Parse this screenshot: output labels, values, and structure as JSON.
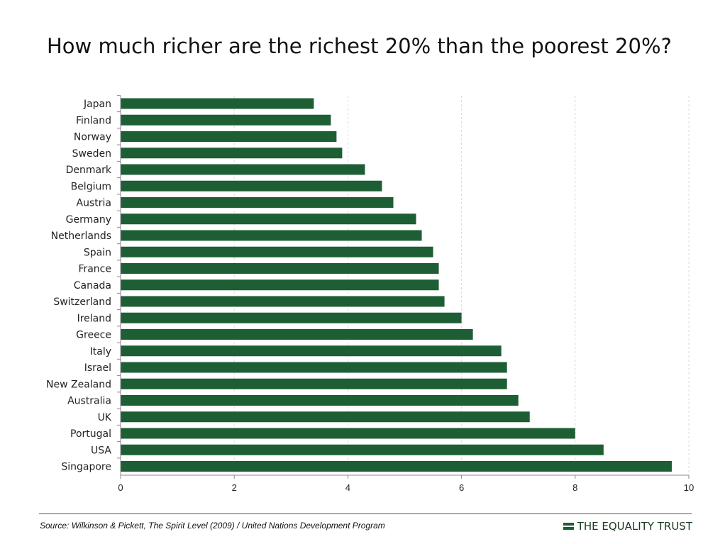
{
  "title": "How much richer are the richest 20% than the poorest 20%?",
  "source": "Source: Wilkinson & Pickett, The Spirit Level (2009) / United Nations Development Program",
  "brand": "THE EQUALITY TRUST",
  "colors": {
    "bar": "#1e5e34",
    "axis": "#888888",
    "grid": "#d9d9d9",
    "brand": "#1e5e34"
  },
  "chart_data": {
    "type": "bar",
    "orientation": "horizontal",
    "categories": [
      "Japan",
      "Finland",
      "Norway",
      "Sweden",
      "Denmark",
      "Belgium",
      "Austria",
      "Germany",
      "Netherlands",
      "Spain",
      "France",
      "Canada",
      "Switzerland",
      "Ireland",
      "Greece",
      "Italy",
      "Israel",
      "New Zealand",
      "Australia",
      "UK",
      "Portugal",
      "USA",
      "Singapore"
    ],
    "values": [
      3.4,
      3.7,
      3.8,
      3.9,
      4.3,
      4.6,
      4.8,
      5.2,
      5.3,
      5.5,
      5.6,
      5.6,
      5.7,
      6.0,
      6.2,
      6.7,
      6.8,
      6.8,
      7.0,
      7.2,
      8.0,
      8.5,
      9.7
    ],
    "xlim": [
      0,
      10
    ],
    "xticks": [
      "0",
      "2",
      "4",
      "6",
      "8",
      "10"
    ],
    "xlabel": "",
    "ylabel": "",
    "grid": "vertical dashed"
  }
}
